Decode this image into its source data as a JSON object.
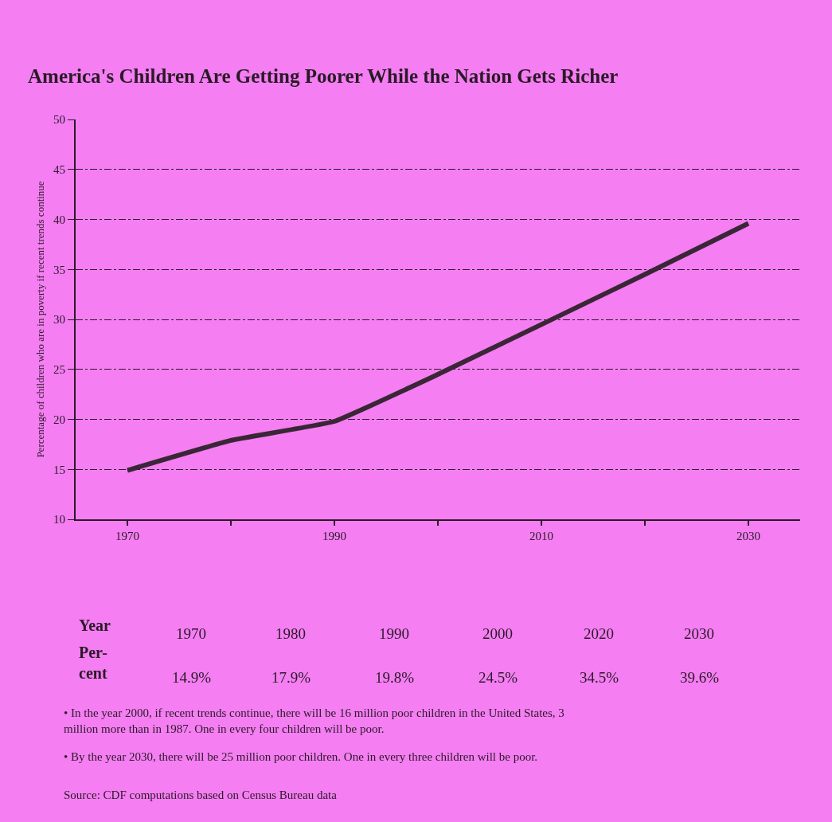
{
  "chart_data": {
    "type": "line",
    "title": "America's Children Are Getting Poorer While the Nation Gets Richer",
    "ylabel": "Percentage of children who are in poverty if recent trends continue",
    "x": [
      1970,
      1980,
      1990,
      2000,
      2020,
      2030
    ],
    "series": [
      {
        "color": "#3a2636",
        "values": [
          14.9,
          17.9,
          19.8,
          24.5,
          34.5,
          39.6
        ]
      }
    ],
    "xlim": [
      1965,
      2035
    ],
    "xticks": [
      1970,
      {
        "value": 1980,
        "label": null
      },
      1990,
      {
        "value": 2000,
        "label": null
      },
      2010,
      {
        "value": 2020,
        "label": null
      },
      2030
    ],
    "ylim": [
      10,
      50
    ],
    "yticks": [
      10,
      15,
      20,
      25,
      30,
      35,
      40,
      45,
      50
    ],
    "grid": "y",
    "marker": "none",
    "line_style": "solid",
    "legend": false,
    "annotations": [
      "Year",
      "1970",
      "1980",
      "1990",
      "2000",
      "2020",
      "2030",
      "Per-cent",
      "14.9%",
      "17.9%",
      "19.8%",
      "24.5%",
      "34.5%",
      "39.6%",
      "• In the year 2000, if recent trends continue, there will be 16 million poor children in the United States, 3 million more than in 1987. One in every four children will be poor.",
      "• By the year 2030, there will be 25 million poor children. One in every three children will be poor.",
      "Source: CDF computations based on Census Bureau data"
    ]
  }
}
